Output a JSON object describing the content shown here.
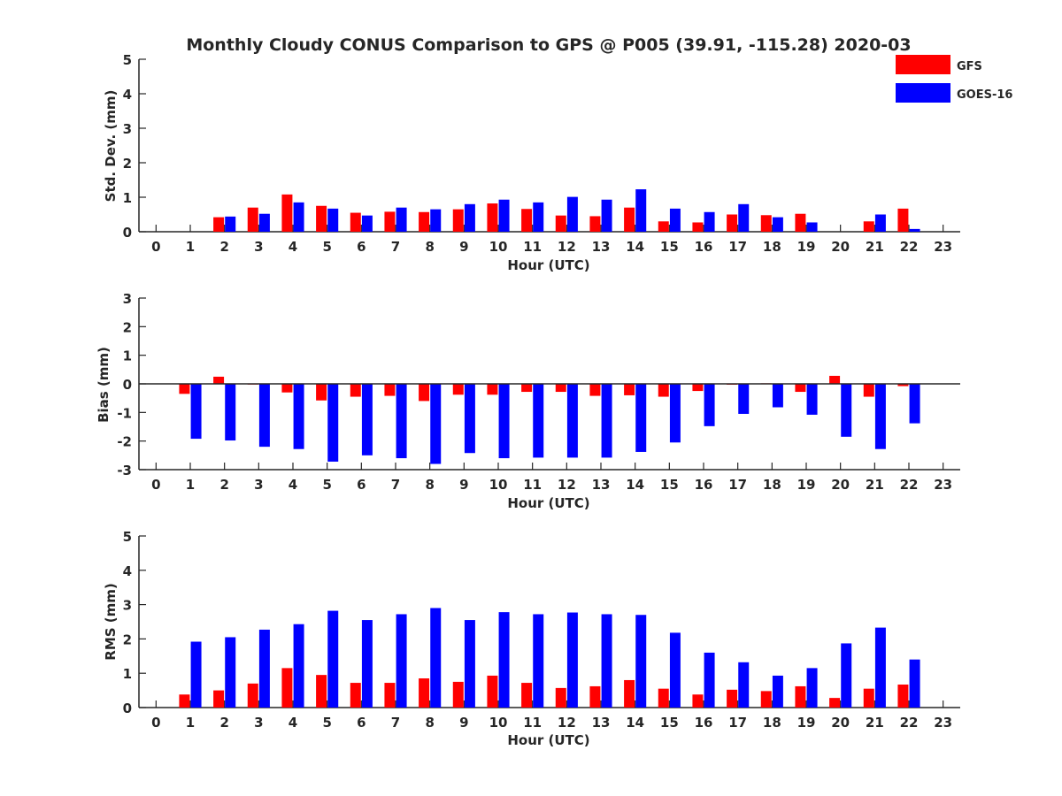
{
  "figure": {
    "title": "Monthly Cloudy CONUS Comparison to GPS @ P005 (39.91, -115.28) 2020-03",
    "legend": {
      "placement": "top-right",
      "entries": [
        {
          "label": "GFS",
          "color": "#ff0000"
        },
        {
          "label": "GOES-16",
          "color": "#0000ff"
        }
      ]
    }
  },
  "chart_data": [
    {
      "type": "bar",
      "name": "std_dev",
      "xlabel": "Hour (UTC)",
      "ylabel": "Std. Dev. (mm)",
      "xlim": [
        -0.5,
        23.5
      ],
      "ylim": [
        0,
        5
      ],
      "yticks": [
        0,
        1,
        2,
        3,
        4,
        5
      ],
      "xticks": [
        0,
        1,
        2,
        3,
        4,
        5,
        6,
        7,
        8,
        9,
        10,
        11,
        12,
        13,
        14,
        15,
        16,
        17,
        18,
        19,
        20,
        21,
        22,
        23
      ],
      "zero_line": false,
      "categories": [
        0,
        1,
        2,
        3,
        4,
        5,
        6,
        7,
        8,
        9,
        10,
        11,
        12,
        13,
        14,
        15,
        16,
        17,
        18,
        19,
        20,
        21,
        22,
        23
      ],
      "series": [
        {
          "name": "GFS",
          "color": "#ff0000",
          "values": [
            null,
            null,
            0.42,
            0.7,
            1.08,
            0.75,
            0.55,
            0.58,
            0.57,
            0.65,
            0.82,
            0.66,
            0.47,
            0.45,
            0.7,
            0.3,
            0.27,
            0.5,
            0.48,
            0.52,
            null,
            0.3,
            0.67,
            null
          ]
        },
        {
          "name": "GOES-16",
          "color": "#0000ff",
          "values": [
            null,
            null,
            0.44,
            0.52,
            0.85,
            0.67,
            0.47,
            0.7,
            0.65,
            0.8,
            0.93,
            0.85,
            1.01,
            0.93,
            1.23,
            0.67,
            0.57,
            0.8,
            0.42,
            0.27,
            null,
            0.5,
            0.08,
            null
          ]
        }
      ]
    },
    {
      "type": "bar",
      "name": "bias",
      "xlabel": "Hour (UTC)",
      "ylabel": "Bias (mm)",
      "xlim": [
        -0.5,
        23.5
      ],
      "ylim": [
        -3,
        3
      ],
      "yticks": [
        -3,
        -2,
        -1,
        0,
        1,
        2,
        3
      ],
      "xticks": [
        0,
        1,
        2,
        3,
        4,
        5,
        6,
        7,
        8,
        9,
        10,
        11,
        12,
        13,
        14,
        15,
        16,
        17,
        18,
        19,
        20,
        21,
        22,
        23
      ],
      "zero_line": true,
      "categories": [
        0,
        1,
        2,
        3,
        4,
        5,
        6,
        7,
        8,
        9,
        10,
        11,
        12,
        13,
        14,
        15,
        16,
        17,
        18,
        19,
        20,
        21,
        22,
        23
      ],
      "series": [
        {
          "name": "GFS",
          "color": "#ff0000",
          "values": [
            null,
            -0.35,
            0.25,
            -0.02,
            -0.3,
            -0.58,
            -0.45,
            -0.42,
            -0.6,
            -0.38,
            -0.38,
            -0.28,
            -0.28,
            -0.42,
            -0.4,
            -0.45,
            -0.25,
            -0.03,
            0.02,
            -0.28,
            0.28,
            -0.45,
            -0.08,
            null
          ]
        },
        {
          "name": "GOES-16",
          "color": "#0000ff",
          "values": [
            null,
            -1.92,
            -1.98,
            -2.2,
            -2.28,
            -2.72,
            -2.5,
            -2.6,
            -2.8,
            -2.42,
            -2.6,
            -2.58,
            -2.58,
            -2.58,
            -2.38,
            -2.05,
            -1.48,
            -1.05,
            -0.82,
            -1.08,
            -1.85,
            -2.28,
            -1.38,
            null
          ]
        }
      ]
    },
    {
      "type": "bar",
      "name": "rms",
      "xlabel": "Hour (UTC)",
      "ylabel": "RMS (mm)",
      "xlim": [
        -0.5,
        23.5
      ],
      "ylim": [
        0,
        5
      ],
      "yticks": [
        0,
        1,
        2,
        3,
        4,
        5
      ],
      "xticks": [
        0,
        1,
        2,
        3,
        4,
        5,
        6,
        7,
        8,
        9,
        10,
        11,
        12,
        13,
        14,
        15,
        16,
        17,
        18,
        19,
        20,
        21,
        22,
        23
      ],
      "zero_line": false,
      "categories": [
        0,
        1,
        2,
        3,
        4,
        5,
        6,
        7,
        8,
        9,
        10,
        11,
        12,
        13,
        14,
        15,
        16,
        17,
        18,
        19,
        20,
        21,
        22,
        23
      ],
      "series": [
        {
          "name": "GFS",
          "color": "#ff0000",
          "values": [
            null,
            0.38,
            0.5,
            0.7,
            1.15,
            0.95,
            0.72,
            0.72,
            0.85,
            0.75,
            0.93,
            0.72,
            0.57,
            0.62,
            0.8,
            0.55,
            0.38,
            0.52,
            0.48,
            0.62,
            0.28,
            0.55,
            0.67,
            null
          ]
        },
        {
          "name": "GOES-16",
          "color": "#0000ff",
          "values": [
            null,
            1.92,
            2.05,
            2.27,
            2.43,
            2.82,
            2.55,
            2.72,
            2.9,
            2.55,
            2.78,
            2.72,
            2.77,
            2.72,
            2.7,
            2.18,
            1.6,
            1.32,
            0.93,
            1.15,
            1.87,
            2.33,
            1.4,
            null
          ]
        }
      ]
    }
  ]
}
